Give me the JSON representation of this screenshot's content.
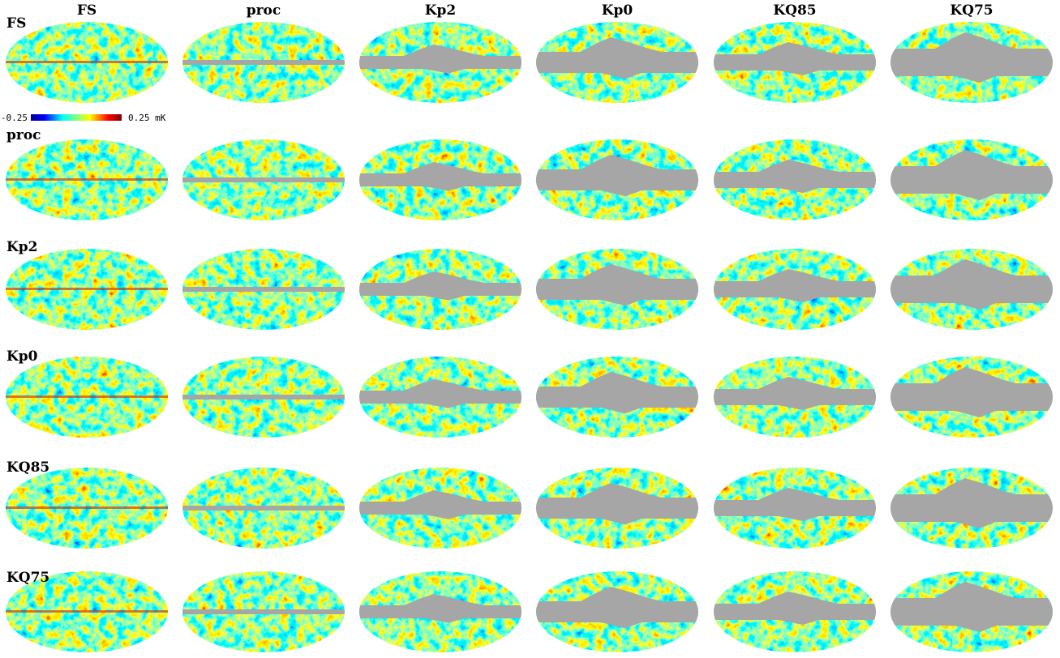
{
  "columns": [
    "FS",
    "proc",
    "Kp2",
    "Kp0",
    "KQ85",
    "KQ75"
  ],
  "rows": [
    "FS",
    "proc",
    "Kp2",
    "Kp0",
    "KQ85",
    "KQ75"
  ],
  "colorbar": {
    "min_label": "-0.25",
    "max_label": "0.25 mK"
  }
}
